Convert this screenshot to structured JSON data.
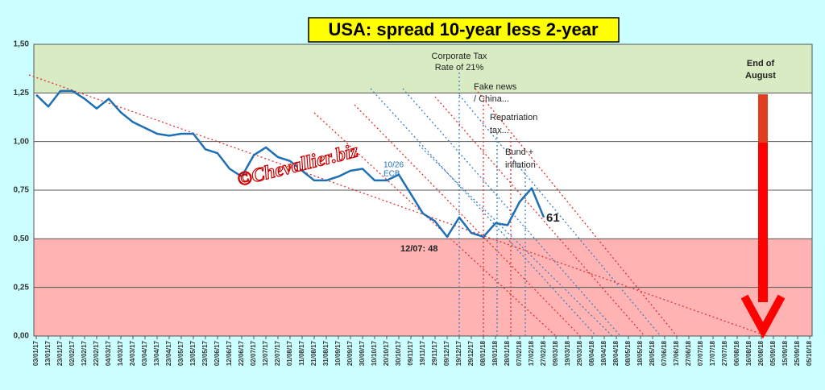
{
  "chart_data": {
    "type": "line",
    "title": "USA: spread 10-year less 2-year",
    "categories": [
      "03/01/17",
      "13/01/17",
      "23/01/17",
      "02/02/17",
      "12/02/17",
      "22/02/17",
      "04/03/17",
      "14/03/17",
      "24/03/17",
      "03/04/17",
      "13/04/17",
      "23/04/17",
      "03/05/17",
      "13/05/17",
      "23/05/17",
      "02/06/17",
      "12/06/17",
      "22/06/17",
      "02/07/17",
      "12/07/17",
      "22/07/17",
      "01/08/17",
      "11/08/17",
      "21/08/17",
      "31/08/17",
      "10/09/17",
      "20/09/17",
      "30/09/17",
      "10/10/17",
      "20/10/17",
      "30/10/17",
      "09/11/17",
      "19/11/17",
      "29/11/17",
      "09/12/17",
      "19/12/17",
      "29/12/17",
      "08/01/18",
      "18/01/18",
      "28/01/18",
      "07/02/18",
      "17/02/18",
      "27/02/18",
      "09/03/18",
      "19/03/18",
      "29/03/18",
      "08/04/18",
      "18/04/18",
      "28/04/18",
      "08/05/18",
      "18/05/18",
      "28/05/18",
      "07/06/18",
      "17/06/18",
      "27/06/18",
      "07/07/18",
      "17/07/18",
      "27/07/18",
      "06/08/18",
      "16/08/18",
      "26/08/18",
      "05/09/18",
      "15/09/18",
      "25/09/18",
      "05/10/18"
    ],
    "series": [
      {
        "color": "#1f6fb5",
        "values": [
          1.24,
          1.18,
          1.26,
          1.26,
          1.22,
          1.17,
          1.22,
          1.15,
          1.1,
          1.07,
          1.04,
          1.03,
          1.04,
          1.04,
          0.96,
          0.94,
          0.86,
          0.82,
          0.93,
          0.97,
          0.92,
          0.9,
          0.85,
          0.8,
          0.8,
          0.82,
          0.85,
          0.86,
          0.8,
          0.8,
          0.83,
          0.73,
          0.63,
          0.59,
          0.51,
          0.61,
          0.53,
          0.51,
          0.58,
          0.57,
          0.69,
          0.76,
          0.61,
          null,
          null,
          null,
          null,
          null,
          null,
          null,
          null,
          null,
          null,
          null,
          null,
          null,
          null,
          null,
          null,
          null,
          null,
          null,
          null,
          null,
          null
        ]
      }
    ],
    "ylim": [
      0,
      1.5
    ],
    "yticks": [
      {
        "value": 0,
        "label": "0,00"
      },
      {
        "value": 0.25,
        "label": "0,25"
      },
      {
        "value": 0.5,
        "label": "0,50"
      },
      {
        "value": 0.75,
        "label": "0,75"
      },
      {
        "value": 1,
        "label": "1,00"
      },
      {
        "value": 1.25,
        "label": "1,25"
      },
      {
        "value": 1.5,
        "label": "1,50"
      }
    ],
    "grid": true,
    "annotations": [
      {
        "lines": [
          "Corporate Tax",
          "Rate of 21%"
        ]
      },
      {
        "lines": [
          "Fake news",
          "/ China..."
        ]
      },
      {
        "lines": [
          "Repatriation",
          "tax..."
        ]
      },
      {
        "lines": [
          "Bund +",
          "inflation"
        ]
      },
      {
        "lines": [
          "End of",
          "August"
        ]
      },
      {
        "lines": [
          "10/26",
          "ECB"
        ]
      },
      {
        "lines": [
          "12/07: 48"
        ]
      },
      {
        "lines": [
          "61"
        ]
      },
      {
        "lines": [
          "©Chevallier.biz"
        ]
      }
    ]
  }
}
